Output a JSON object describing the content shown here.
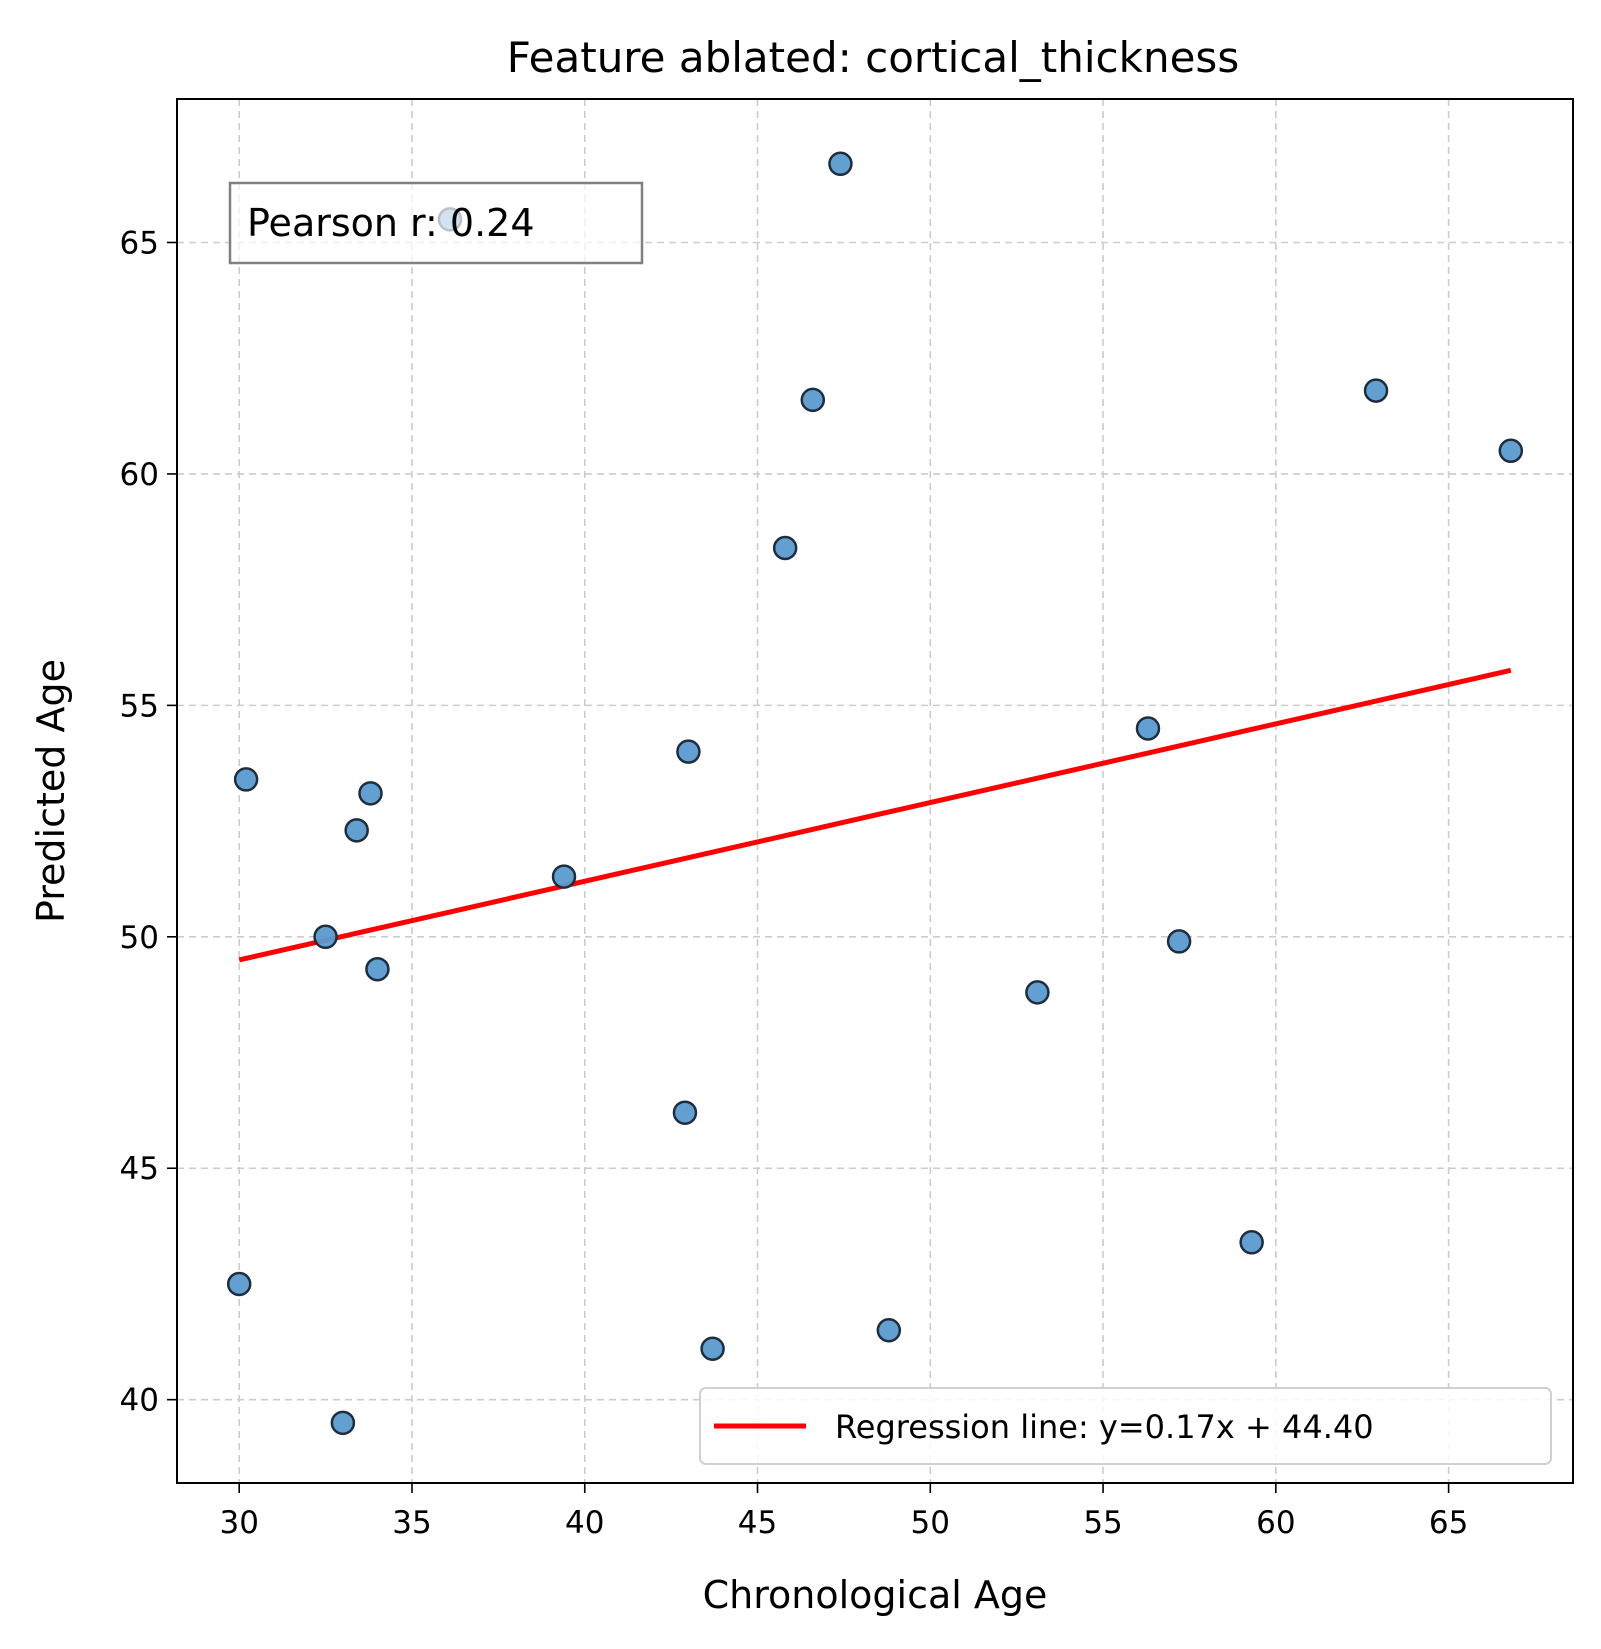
{
  "chart_data": {
    "type": "scatter",
    "title": "Feature ablated: cortical_thickness",
    "xlabel": "Chronological Age",
    "ylabel": "Predicted Age",
    "xlim": [
      28.2,
      68.6
    ],
    "ylim": [
      38.2,
      68.1
    ],
    "xticks": [
      30,
      35,
      40,
      45,
      50,
      55,
      60,
      65
    ],
    "yticks": [
      40,
      45,
      50,
      55,
      60,
      65
    ],
    "grid": true,
    "points": [
      {
        "x": 47.4,
        "y": 66.7
      },
      {
        "x": 36.1,
        "y": 65.5
      },
      {
        "x": 46.6,
        "y": 61.6
      },
      {
        "x": 62.9,
        "y": 61.8
      },
      {
        "x": 66.8,
        "y": 60.5
      },
      {
        "x": 45.8,
        "y": 58.4
      },
      {
        "x": 56.3,
        "y": 54.5
      },
      {
        "x": 43.0,
        "y": 54.0
      },
      {
        "x": 30.2,
        "y": 53.4
      },
      {
        "x": 33.8,
        "y": 53.1
      },
      {
        "x": 33.4,
        "y": 52.3
      },
      {
        "x": 39.4,
        "y": 51.3
      },
      {
        "x": 32.5,
        "y": 50.0
      },
      {
        "x": 57.2,
        "y": 49.9
      },
      {
        "x": 34.0,
        "y": 49.3
      },
      {
        "x": 53.1,
        "y": 48.8
      },
      {
        "x": 42.9,
        "y": 46.2
      },
      {
        "x": 59.3,
        "y": 43.4
      },
      {
        "x": 30.0,
        "y": 42.5
      },
      {
        "x": 48.8,
        "y": 41.5
      },
      {
        "x": 43.7,
        "y": 41.1
      },
      {
        "x": 33.0,
        "y": 39.5
      }
    ],
    "regression": {
      "slope": 0.17,
      "intercept": 44.4,
      "x_range": [
        30.0,
        66.8
      ]
    },
    "legend": {
      "position": "lower-right",
      "label": "Regression line: y=0.17x + 44.40"
    },
    "annotation": {
      "text": "Pearson r: 0.24",
      "position": "top-left"
    },
    "colors": {
      "point_fill": "#5b9bd0",
      "point_edge": "#1f2d3d",
      "line": "#ff0000",
      "grid": "#cccccc",
      "annotation_edge": "#808080",
      "legend_edge": "#d0d0d0"
    }
  }
}
